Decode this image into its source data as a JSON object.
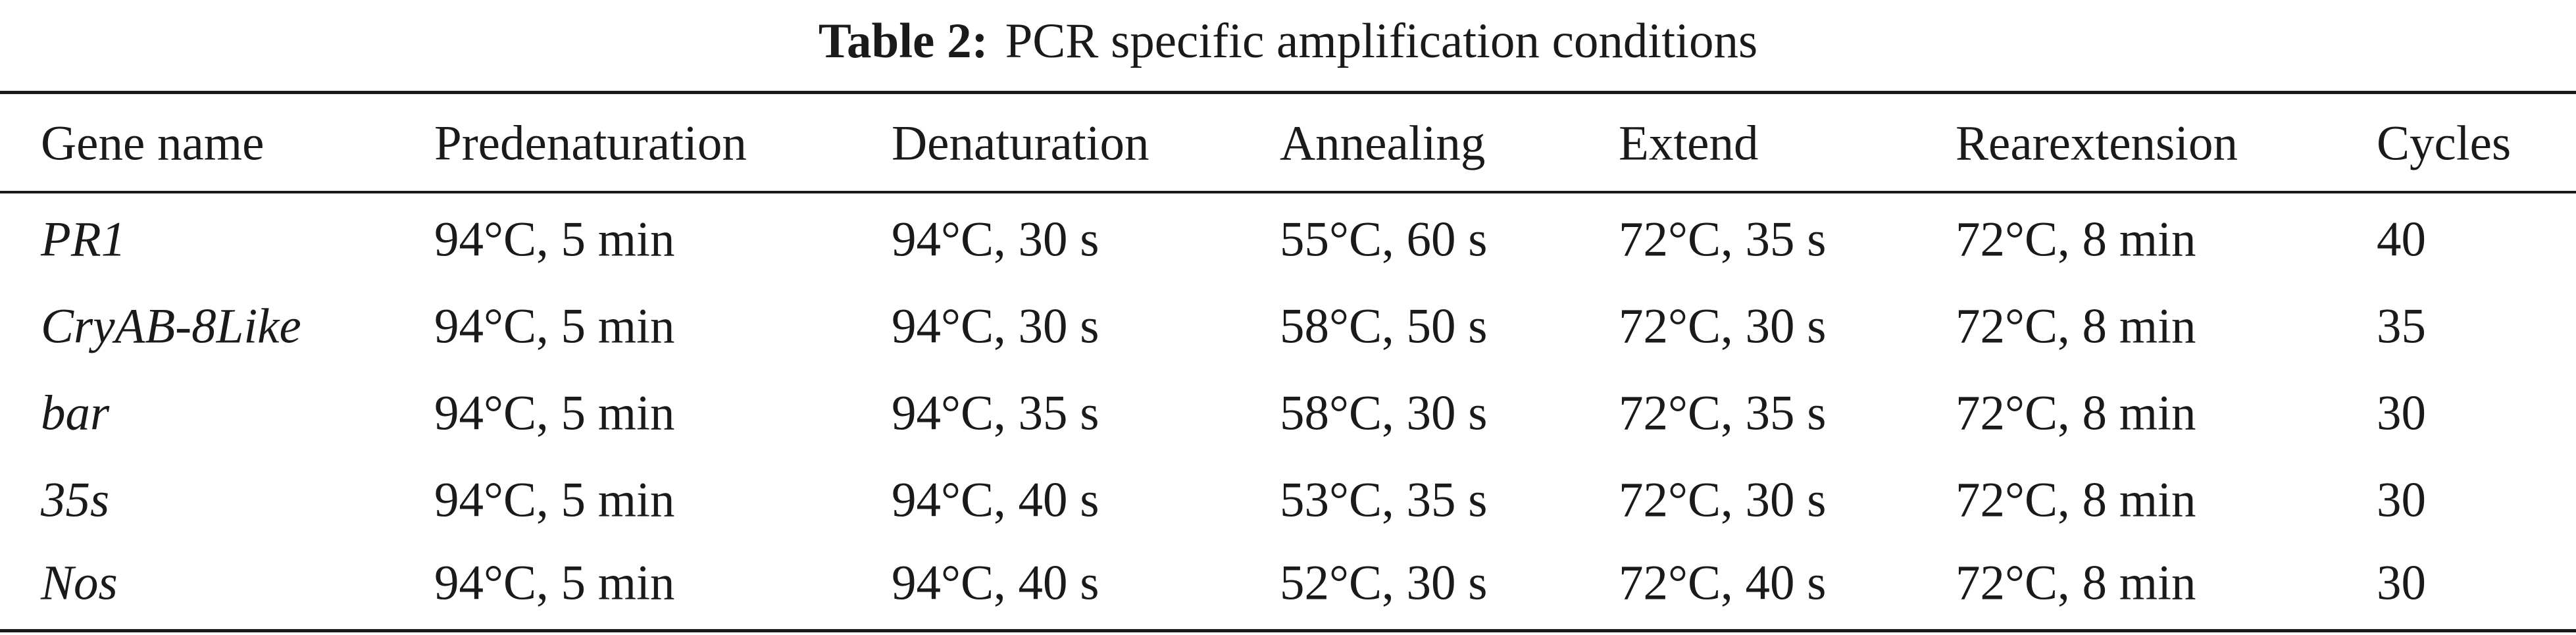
{
  "caption": {
    "label": "Table 2:",
    "text": "PCR specific amplification conditions"
  },
  "table": {
    "columns": [
      "Gene name",
      "Predenaturation",
      "Denaturation",
      "Annealing",
      "Extend",
      "Rearextension",
      "Cycles"
    ],
    "rows": [
      [
        "PR1",
        "94°C, 5 min",
        "94°C, 30 s",
        "55°C, 60 s",
        "72°C, 35 s",
        "72°C, 8 min",
        "40"
      ],
      [
        "CryAB-8Like",
        "94°C, 5 min",
        "94°C, 30 s",
        "58°C, 50 s",
        "72°C, 30 s",
        "72°C, 8 min",
        "35"
      ],
      [
        "bar",
        "94°C, 5 min",
        "94°C, 35 s",
        "58°C, 30 s",
        "72°C, 35 s",
        "72°C, 8 min",
        "30"
      ],
      [
        "35s",
        "94°C, 5 min",
        "94°C, 40 s",
        "53°C, 35 s",
        "72°C, 30 s",
        "72°C, 8 min",
        "30"
      ],
      [
        "Nos",
        "94°C, 5 min",
        "94°C, 40 s",
        "52°C, 30 s",
        "72°C, 40 s",
        "72°C, 8 min",
        "30"
      ]
    ]
  }
}
